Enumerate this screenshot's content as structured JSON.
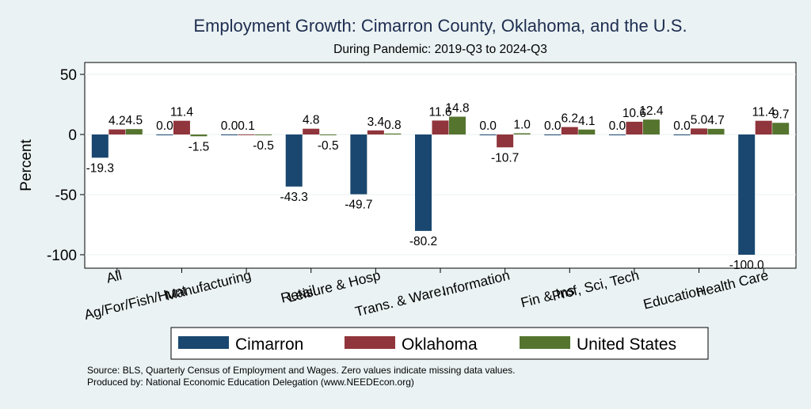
{
  "chart_data": {
    "type": "bar",
    "title": "Employment Growth: Cimarron County, Oklahoma, and the U.S.",
    "subtitle": "During Pandemic: 2019-Q3 to 2024-Q3",
    "ylabel": "Percent",
    "xlabel": "",
    "ylim": [
      -110,
      60
    ],
    "yticks": [
      50,
      0,
      -50,
      -100
    ],
    "ytick_labels": [
      "50",
      "0",
      "-50",
      "-100"
    ],
    "grid": true,
    "categories": [
      "All",
      "Ag/For/Fish/Hunt",
      "Manufacturing",
      "Retail",
      "Leisure & Hosp",
      "Trans. & Ware.",
      "Information",
      "Fin & Ins",
      "Prof, Sci, Tech",
      "Education",
      "Health Care"
    ],
    "series": [
      {
        "name": "Cimarron",
        "color": "#1a476f",
        "values": [
          -19.3,
          0.0,
          0.0,
          -43.3,
          -49.7,
          -80.2,
          0.0,
          0.0,
          0.0,
          0.0,
          -100.0
        ],
        "labels": [
          "-19.3",
          "0.0",
          "0.0",
          "-43.3",
          "-49.7",
          "-80.2",
          "0.0",
          "0.0",
          "0.0",
          "0.0",
          "-100.0"
        ]
      },
      {
        "name": "Oklahoma",
        "color": "#90353b",
        "values": [
          4.2,
          11.4,
          0.1,
          4.8,
          3.4,
          11.6,
          -10.7,
          6.2,
          10.6,
          5.0,
          11.4
        ],
        "labels": [
          "4.2",
          "11.4",
          "0.1",
          "4.8",
          "3.4",
          "11.6",
          "-10.7",
          "6.2",
          "10.6",
          "5.0",
          "11.4"
        ]
      },
      {
        "name": "United States",
        "color": "#55752f",
        "values": [
          4.5,
          -1.5,
          -0.5,
          -0.5,
          0.8,
          14.8,
          1.0,
          4.1,
          12.4,
          4.7,
          9.7
        ],
        "labels": [
          "4.5",
          "-1.5",
          "-0.5",
          "-0.5",
          "0.8",
          "14.8",
          "1.0",
          "4.1",
          "12.4",
          "4.7",
          "9.7"
        ]
      }
    ],
    "legend": {
      "placement": "bottom",
      "entries": [
        "Cimarron",
        "Oklahoma",
        "United States"
      ]
    },
    "notes": [
      "Source: BLS, Quarterly Census of Employment and Wages. Zero values indicate missing data values.",
      "Produced by: National Economic Education Delegation (www.NEEDEcon.org)"
    ]
  },
  "colors": {
    "background": "#eaf2f3",
    "plot_background": "#ffffff",
    "title": "#1e2d50",
    "grid": "#eaf2f3"
  }
}
